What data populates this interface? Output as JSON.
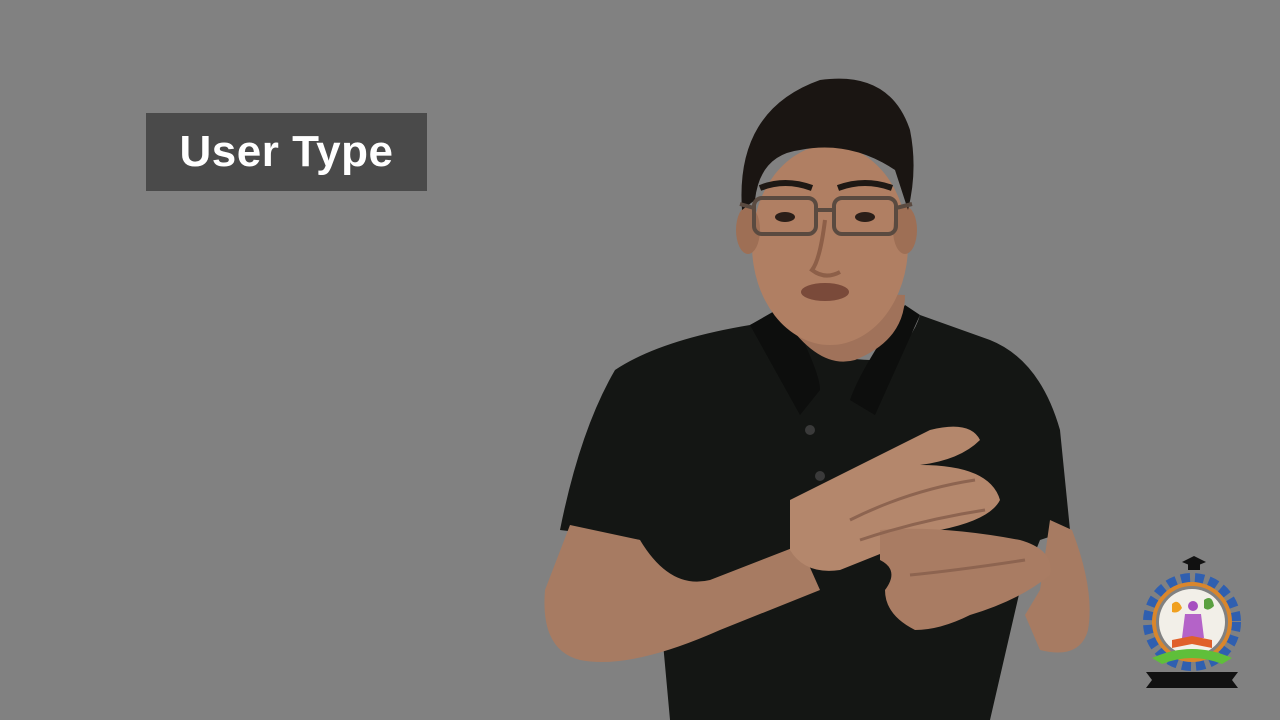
{
  "slide": {
    "title": "User Type"
  },
  "presenter": {
    "description_icon": "sign-language-presenter"
  },
  "logo": {
    "icon": "institution-emblem-icon"
  },
  "colors": {
    "background": "#818181",
    "title_box": "#4a4a4a",
    "title_text": "#ffffff",
    "shirt": "#141614",
    "skin": "#b07f63",
    "hair": "#1a1512"
  }
}
